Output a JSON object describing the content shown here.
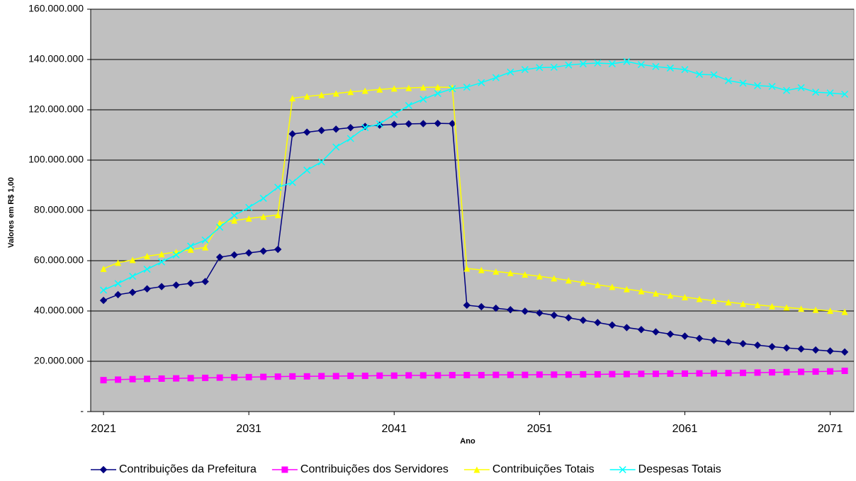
{
  "chart_data": {
    "type": "line",
    "x_label": "Ano",
    "y_label": "Valores em R$ 1,00",
    "x": [
      2021,
      2022,
      2023,
      2024,
      2025,
      2026,
      2027,
      2028,
      2029,
      2030,
      2031,
      2032,
      2033,
      2034,
      2035,
      2036,
      2037,
      2038,
      2039,
      2040,
      2041,
      2042,
      2043,
      2044,
      2045,
      2046,
      2047,
      2048,
      2049,
      2050,
      2051,
      2052,
      2053,
      2054,
      2055,
      2056,
      2057,
      2058,
      2059,
      2060,
      2061,
      2062,
      2063,
      2064,
      2065,
      2066,
      2067,
      2068,
      2069,
      2070,
      2071,
      2072
    ],
    "xlim": [
      2020.12,
      2072.63
    ],
    "xticks": [
      2021,
      2031,
      2041,
      2051,
      2061,
      2071
    ],
    "ylim": [
      0,
      160000000
    ],
    "yticks": [
      {
        "value": 0,
        "label": "-"
      },
      {
        "value": 20000000,
        "label": "20.000.000"
      },
      {
        "value": 40000000,
        "label": "40.000.000"
      },
      {
        "value": 60000000,
        "label": "60.000.000"
      },
      {
        "value": 80000000,
        "label": "80.000.000"
      },
      {
        "value": 100000000,
        "label": "100.000.000"
      },
      {
        "value": 120000000,
        "label": "120.000.000"
      },
      {
        "value": 140000000,
        "label": "140.000.000"
      },
      {
        "value": 160000000,
        "label": "160.000.000"
      }
    ],
    "grid": true,
    "background": "#c0c0c0",
    "legend": "bottom",
    "series": [
      {
        "name": "Contribuições da Prefeitura",
        "color": "#000080",
        "marker": "diamond",
        "values": [
          44200000,
          46500000,
          47400000,
          48800000,
          49700000,
          50300000,
          51000000,
          51700000,
          61400000,
          62300000,
          63100000,
          63800000,
          64500000,
          110400000,
          111100000,
          111800000,
          112300000,
          112900000,
          113400000,
          113900000,
          114200000,
          114400000,
          114500000,
          114600000,
          114500000,
          42300000,
          41700000,
          41100000,
          40500000,
          39900000,
          39200000,
          38300000,
          37300000,
          36300000,
          35400000,
          34400000,
          33400000,
          32600000,
          31700000,
          30800000,
          30000000,
          29100000,
          28300000,
          27600000,
          27000000,
          26400000,
          25800000,
          25300000,
          24900000,
          24500000,
          24100000,
          23700000
        ]
      },
      {
        "name": "Contribuições dos Servidores",
        "color": "#ff00ff",
        "marker": "square",
        "values": [
          12500000,
          12700000,
          12900000,
          13000000,
          13100000,
          13200000,
          13300000,
          13400000,
          13500000,
          13600000,
          13700000,
          13800000,
          13900000,
          14000000,
          14000000,
          14100000,
          14100000,
          14200000,
          14200000,
          14300000,
          14300000,
          14400000,
          14400000,
          14400000,
          14500000,
          14500000,
          14500000,
          14600000,
          14600000,
          14600000,
          14700000,
          14700000,
          14700000,
          14800000,
          14800000,
          14900000,
          14900000,
          15000000,
          15000000,
          15100000,
          15100000,
          15200000,
          15200000,
          15300000,
          15400000,
          15500000,
          15600000,
          15700000,
          15800000,
          15900000,
          16000000,
          16200000
        ]
      },
      {
        "name": "Contribuições Totais",
        "color": "#ffff00",
        "marker": "triangle",
        "values": [
          56800000,
          59200000,
          60300000,
          61800000,
          62600000,
          63500000,
          64400000,
          65300000,
          75000000,
          76000000,
          76800000,
          77500000,
          78200000,
          124600000,
          125300000,
          125900000,
          126500000,
          127100000,
          127600000,
          128100000,
          128500000,
          128700000,
          128900000,
          129000000,
          128900000,
          56900000,
          56300000,
          55700000,
          55100000,
          54500000,
          53800000,
          53000000,
          52200000,
          51300000,
          50400000,
          49600000,
          48700000,
          47900000,
          47000000,
          46200000,
          45500000,
          44800000,
          44100000,
          43500000,
          42900000,
          42400000,
          41900000,
          41400000,
          40900000,
          40500000,
          40100000,
          39700000
        ]
      },
      {
        "name": "Despesas Totais",
        "color": "#00ffff",
        "marker": "x",
        "values": [
          48300000,
          50900000,
          53800000,
          56600000,
          59500000,
          62300000,
          65800000,
          68200000,
          73300000,
          78000000,
          81200000,
          84800000,
          89200000,
          91100000,
          96000000,
          99300000,
          105200000,
          108600000,
          112900000,
          114400000,
          118200000,
          121700000,
          124200000,
          126500000,
          128400000,
          129000000,
          130800000,
          132800000,
          135000000,
          136000000,
          136800000,
          136900000,
          137800000,
          138300000,
          138600000,
          138300000,
          139200000,
          138000000,
          137200000,
          136600000,
          136000000,
          134100000,
          133900000,
          131600000,
          130600000,
          129600000,
          129300000,
          127700000,
          128800000,
          127000000,
          126700000,
          126200000
        ]
      }
    ]
  }
}
